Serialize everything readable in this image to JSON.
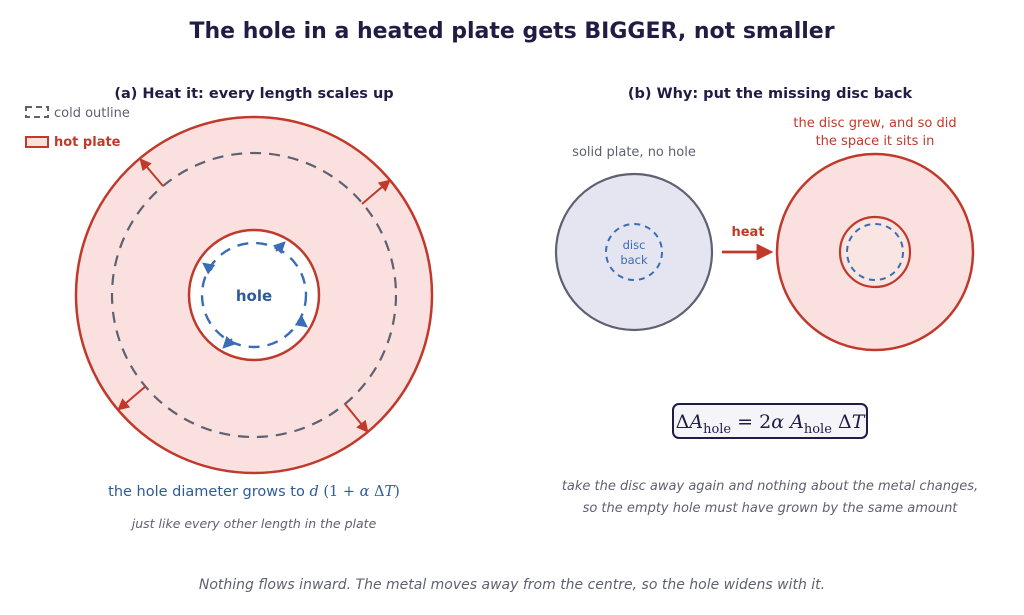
{
  "title": "The hole in a heated plate gets BIGGER, not smaller",
  "panel_a": {
    "heading": "(a) Heat it: every length scales up",
    "legend": {
      "cold_label": "cold outline",
      "hot_label": "hot plate"
    },
    "hole_label": "hole",
    "caption_prefix": "the hole diameter grows to ",
    "caption_sub": "just like every other length in the plate"
  },
  "panel_b": {
    "heading": "(b) Why: put the missing disc back",
    "solid_label": "solid plate, no hole",
    "disc_label_1": "disc",
    "disc_label_2": "back",
    "arrow_label": "heat",
    "grew_label_1": "the disc grew, and so did",
    "grew_label_2": "the space it sits in",
    "explain_1": "take the disc away again and nothing about the metal changes,",
    "explain_2": "so the empty hole must have grown by the same amount"
  },
  "footer": "Nothing flows inward. The metal moves away from the centre, so the hole widens with it.",
  "colors": {
    "navy": "#1f1d44",
    "red": "#c0392b",
    "hot_fill": "#fbe0e0",
    "gray": "#5f6170",
    "blue": "#3a6db5",
    "cold_fill": "#e4e5f0"
  }
}
